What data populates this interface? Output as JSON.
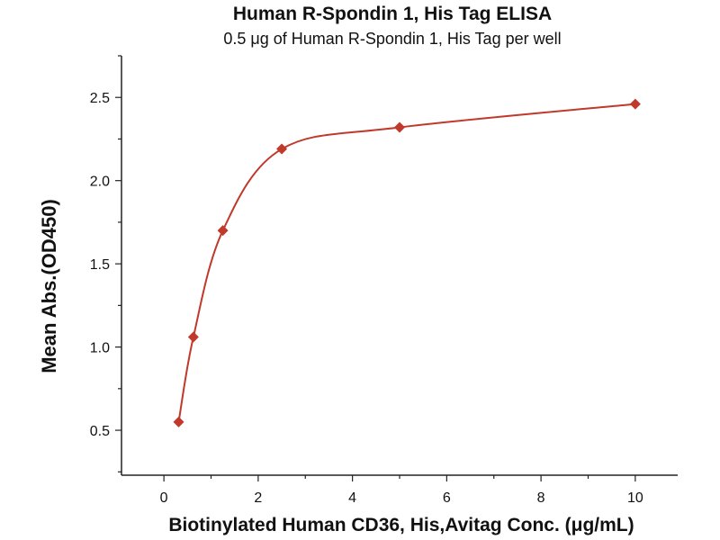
{
  "chart_data": {
    "type": "scatter",
    "title": "Human R-Spondin 1, His Tag ELISA",
    "subtitle": "0.5 μg of Human R-Spondin 1, His Tag per well",
    "xlabel": "Biotinylated Human CD36, His,Avitag Conc. (μg/mL)",
    "ylabel": "Mean Abs.(OD450)",
    "xlim": [
      -0.9,
      10.9
    ],
    "ylim": [
      0.23,
      2.75
    ],
    "x_ticks": [
      0,
      2,
      4,
      6,
      8,
      10
    ],
    "x_tick_labels": [
      "0",
      "2",
      "4",
      "6",
      "8",
      "10"
    ],
    "y_ticks": [
      0.5,
      1.0,
      1.5,
      2.0,
      2.5
    ],
    "y_tick_labels": [
      "0.5",
      "1.0",
      "1.5",
      "2.0",
      "2.5"
    ],
    "grid": false,
    "series": [
      {
        "x": [
          0.3125,
          0.625,
          1.25,
          2.5,
          5,
          10
        ],
        "y": [
          0.55,
          1.06,
          1.7,
          2.19,
          2.32,
          2.46
        ],
        "marker": "diamond",
        "color": "#c0392b",
        "fit_curve": true,
        "line_color": "#c0392b"
      }
    ]
  }
}
